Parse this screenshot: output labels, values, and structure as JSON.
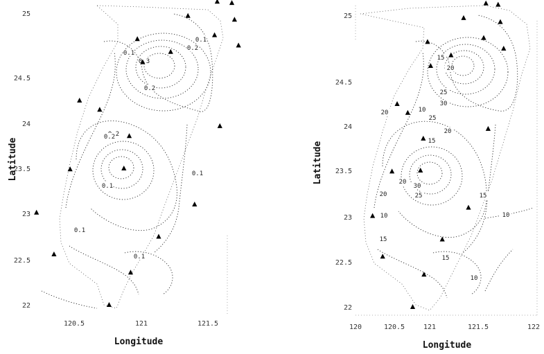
{
  "chart_data": [
    {
      "type": "contour",
      "xlabel": "Longitude",
      "ylabel": "Latitude",
      "xlim": [
        120.0,
        122.0
      ],
      "ylim": [
        21.9,
        25.3
      ],
      "xticks": [
        "120.5",
        "121",
        "121.5"
      ],
      "yticks": [
        "22",
        "22.5",
        "23",
        "23.5",
        "24",
        "24.5",
        "25"
      ],
      "contour_labels": [
        "0.1",
        "0.3",
        "0.2",
        "0.2",
        "0.1",
        "0.2",
        "0.1",
        "0.1",
        "0.1",
        "0.2",
        "0.1"
      ],
      "stations": [
        {
          "lon": 121.38,
          "lat": 25.13
        },
        {
          "lon": 121.57,
          "lat": 25.09
        },
        {
          "lon": 121.68,
          "lat": 25.08
        },
        {
          "lon": 121.35,
          "lat": 24.98
        },
        {
          "lon": 121.7,
          "lat": 24.95
        },
        {
          "lon": 121.55,
          "lat": 24.83
        },
        {
          "lon": 120.97,
          "lat": 24.8
        },
        {
          "lon": 121.01,
          "lat": 24.62
        },
        {
          "lon": 121.22,
          "lat": 24.7
        },
        {
          "lon": 121.73,
          "lat": 24.75
        },
        {
          "lon": 120.54,
          "lat": 24.25
        },
        {
          "lon": 120.69,
          "lat": 24.15
        },
        {
          "lon": 121.59,
          "lat": 23.97
        },
        {
          "lon": 120.91,
          "lat": 23.86
        },
        {
          "lon": 120.47,
          "lat": 23.49
        },
        {
          "lon": 120.87,
          "lat": 23.5
        },
        {
          "lon": 121.4,
          "lat": 23.1
        },
        {
          "lon": 120.22,
          "lat": 23.01
        },
        {
          "lon": 121.13,
          "lat": 22.75
        },
        {
          "lon": 120.35,
          "lat": 22.56
        },
        {
          "lon": 120.92,
          "lat": 22.36
        },
        {
          "lon": 120.76,
          "lat": 22.0
        }
      ]
    },
    {
      "type": "contour",
      "xlabel": "Longitude",
      "ylabel": "Latitude",
      "xlim": [
        120.0,
        122.0
      ],
      "ylim": [
        21.9,
        25.3
      ],
      "xticks": [
        "120",
        "120.5",
        "121",
        "121.5",
        "122"
      ],
      "yticks": [
        "22",
        "22.5",
        "23",
        "23.5",
        "24",
        "24.5",
        "25"
      ],
      "contour_labels": [
        "15",
        "20",
        "25",
        "30",
        "25",
        "20",
        "10",
        "20",
        "15",
        "20",
        "25",
        "30",
        "20",
        "15",
        "10",
        "10",
        "15",
        "15",
        "10"
      ],
      "stations": [
        {
          "lon": 121.38,
          "lat": 25.13
        },
        {
          "lon": 121.57,
          "lat": 25.09
        },
        {
          "lon": 121.68,
          "lat": 25.08
        },
        {
          "lon": 121.35,
          "lat": 24.98
        },
        {
          "lon": 121.7,
          "lat": 24.95
        },
        {
          "lon": 121.55,
          "lat": 24.83
        },
        {
          "lon": 120.97,
          "lat": 24.8
        },
        {
          "lon": 121.01,
          "lat": 24.62
        },
        {
          "lon": 121.22,
          "lat": 24.7
        },
        {
          "lon": 121.73,
          "lat": 24.75
        },
        {
          "lon": 120.54,
          "lat": 24.25
        },
        {
          "lon": 120.69,
          "lat": 24.15
        },
        {
          "lon": 121.59,
          "lat": 23.97
        },
        {
          "lon": 120.91,
          "lat": 23.86
        },
        {
          "lon": 120.47,
          "lat": 23.49
        },
        {
          "lon": 120.87,
          "lat": 23.5
        },
        {
          "lon": 121.4,
          "lat": 23.1
        },
        {
          "lon": 120.22,
          "lat": 23.01
        },
        {
          "lon": 121.13,
          "lat": 22.75
        },
        {
          "lon": 120.35,
          "lat": 22.56
        },
        {
          "lon": 120.92,
          "lat": 22.36
        },
        {
          "lon": 120.76,
          "lat": 22.0
        }
      ]
    }
  ]
}
